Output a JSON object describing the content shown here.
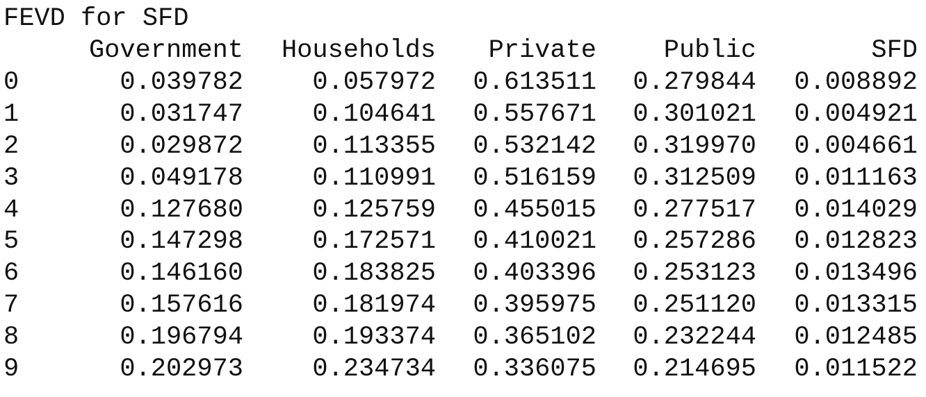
{
  "title": "FEVD for SFD",
  "table": {
    "columns": [
      "Government",
      "Households",
      "Private",
      "Public",
      "SFD"
    ],
    "rows": [
      {
        "index": "0",
        "cells": [
          "0.039782",
          "0.057972",
          "0.613511",
          "0.279844",
          "0.008892"
        ]
      },
      {
        "index": "1",
        "cells": [
          "0.031747",
          "0.104641",
          "0.557671",
          "0.301021",
          "0.004921"
        ]
      },
      {
        "index": "2",
        "cells": [
          "0.029872",
          "0.113355",
          "0.532142",
          "0.319970",
          "0.004661"
        ]
      },
      {
        "index": "3",
        "cells": [
          "0.049178",
          "0.110991",
          "0.516159",
          "0.312509",
          "0.011163"
        ]
      },
      {
        "index": "4",
        "cells": [
          "0.127680",
          "0.125759",
          "0.455015",
          "0.277517",
          "0.014029"
        ]
      },
      {
        "index": "5",
        "cells": [
          "0.147298",
          "0.172571",
          "0.410021",
          "0.257286",
          "0.012823"
        ]
      },
      {
        "index": "6",
        "cells": [
          "0.146160",
          "0.183825",
          "0.403396",
          "0.253123",
          "0.013496"
        ]
      },
      {
        "index": "7",
        "cells": [
          "0.157616",
          "0.181974",
          "0.395975",
          "0.251120",
          "0.013315"
        ]
      },
      {
        "index": "8",
        "cells": [
          "0.196794",
          "0.193374",
          "0.365102",
          "0.232244",
          "0.012485"
        ]
      },
      {
        "index": "9",
        "cells": [
          "0.202973",
          "0.234734",
          "0.336075",
          "0.214695",
          "0.011522"
        ]
      }
    ]
  }
}
